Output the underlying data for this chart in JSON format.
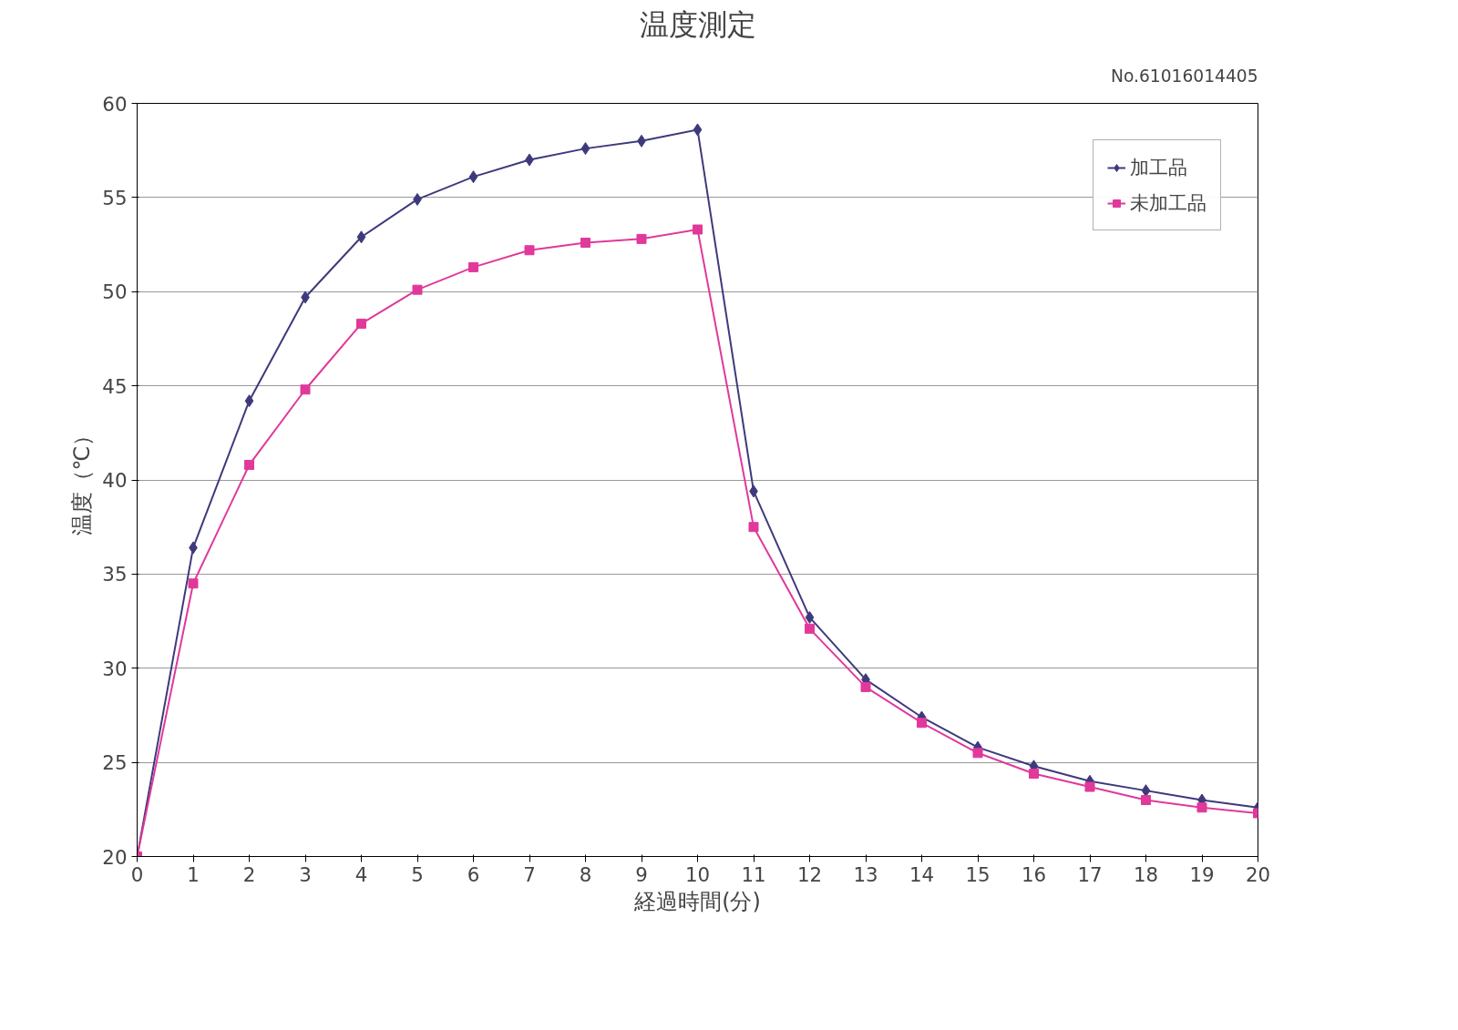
{
  "chart_data": {
    "type": "line",
    "title": "温度測定",
    "xlabel": "経過時間(分)",
    "ylabel": "温度（℃）",
    "annotations": [
      "No.61016014405"
    ],
    "x": [
      0,
      1,
      2,
      3,
      4,
      5,
      6,
      7,
      8,
      9,
      10,
      11,
      12,
      13,
      14,
      15,
      16,
      17,
      18,
      19,
      20
    ],
    "series": [
      {
        "name": "加工品",
        "color": "#3d3a7c",
        "marker": "diamond",
        "values": [
          20,
          36.4,
          44.2,
          49.7,
          52.9,
          54.9,
          56.1,
          57.0,
          57.6,
          58.0,
          58.6,
          39.4,
          32.7,
          29.4,
          27.4,
          25.8,
          24.8,
          24.0,
          23.5,
          23.0,
          22.6
        ]
      },
      {
        "name": "未加工品",
        "color": "#e0399a",
        "marker": "square",
        "values": [
          20,
          34.5,
          40.8,
          44.8,
          48.3,
          50.1,
          51.3,
          52.2,
          52.6,
          52.8,
          53.3,
          37.5,
          32.1,
          29.0,
          27.1,
          25.5,
          24.4,
          23.7,
          23.0,
          22.6,
          22.3
        ]
      }
    ],
    "xlim": [
      0,
      20
    ],
    "xticks": [
      0,
      1,
      2,
      3,
      4,
      5,
      6,
      7,
      8,
      9,
      10,
      11,
      12,
      13,
      14,
      15,
      16,
      17,
      18,
      19,
      20
    ],
    "ylim": [
      20,
      60
    ],
    "yticks": [
      20,
      25,
      30,
      35,
      40,
      45,
      50,
      55,
      60
    ],
    "grid": "y",
    "legend": "top right"
  }
}
